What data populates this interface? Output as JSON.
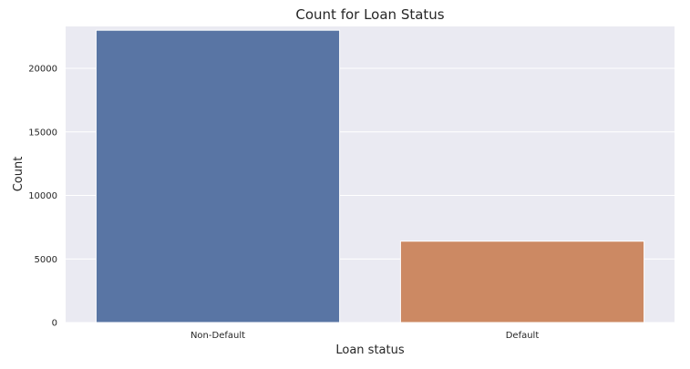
{
  "chart_data": {
    "type": "bar",
    "title": "Count for Loan Status",
    "xlabel": "Loan status",
    "ylabel": "Count",
    "categories": [
      "Non-Default",
      "Default"
    ],
    "values": [
      23000,
      6400
    ],
    "colors": [
      "#5975a4",
      "#cc8963"
    ],
    "ylim": [
      0,
      23300
    ],
    "yticks": [
      0,
      5000,
      10000,
      15000,
      20000
    ],
    "ytick_labels": [
      "0",
      "5000",
      "10000",
      "15000",
      "20000"
    ],
    "grid": true,
    "background": "#eaeaf2",
    "grid_color": "#ffffff"
  }
}
